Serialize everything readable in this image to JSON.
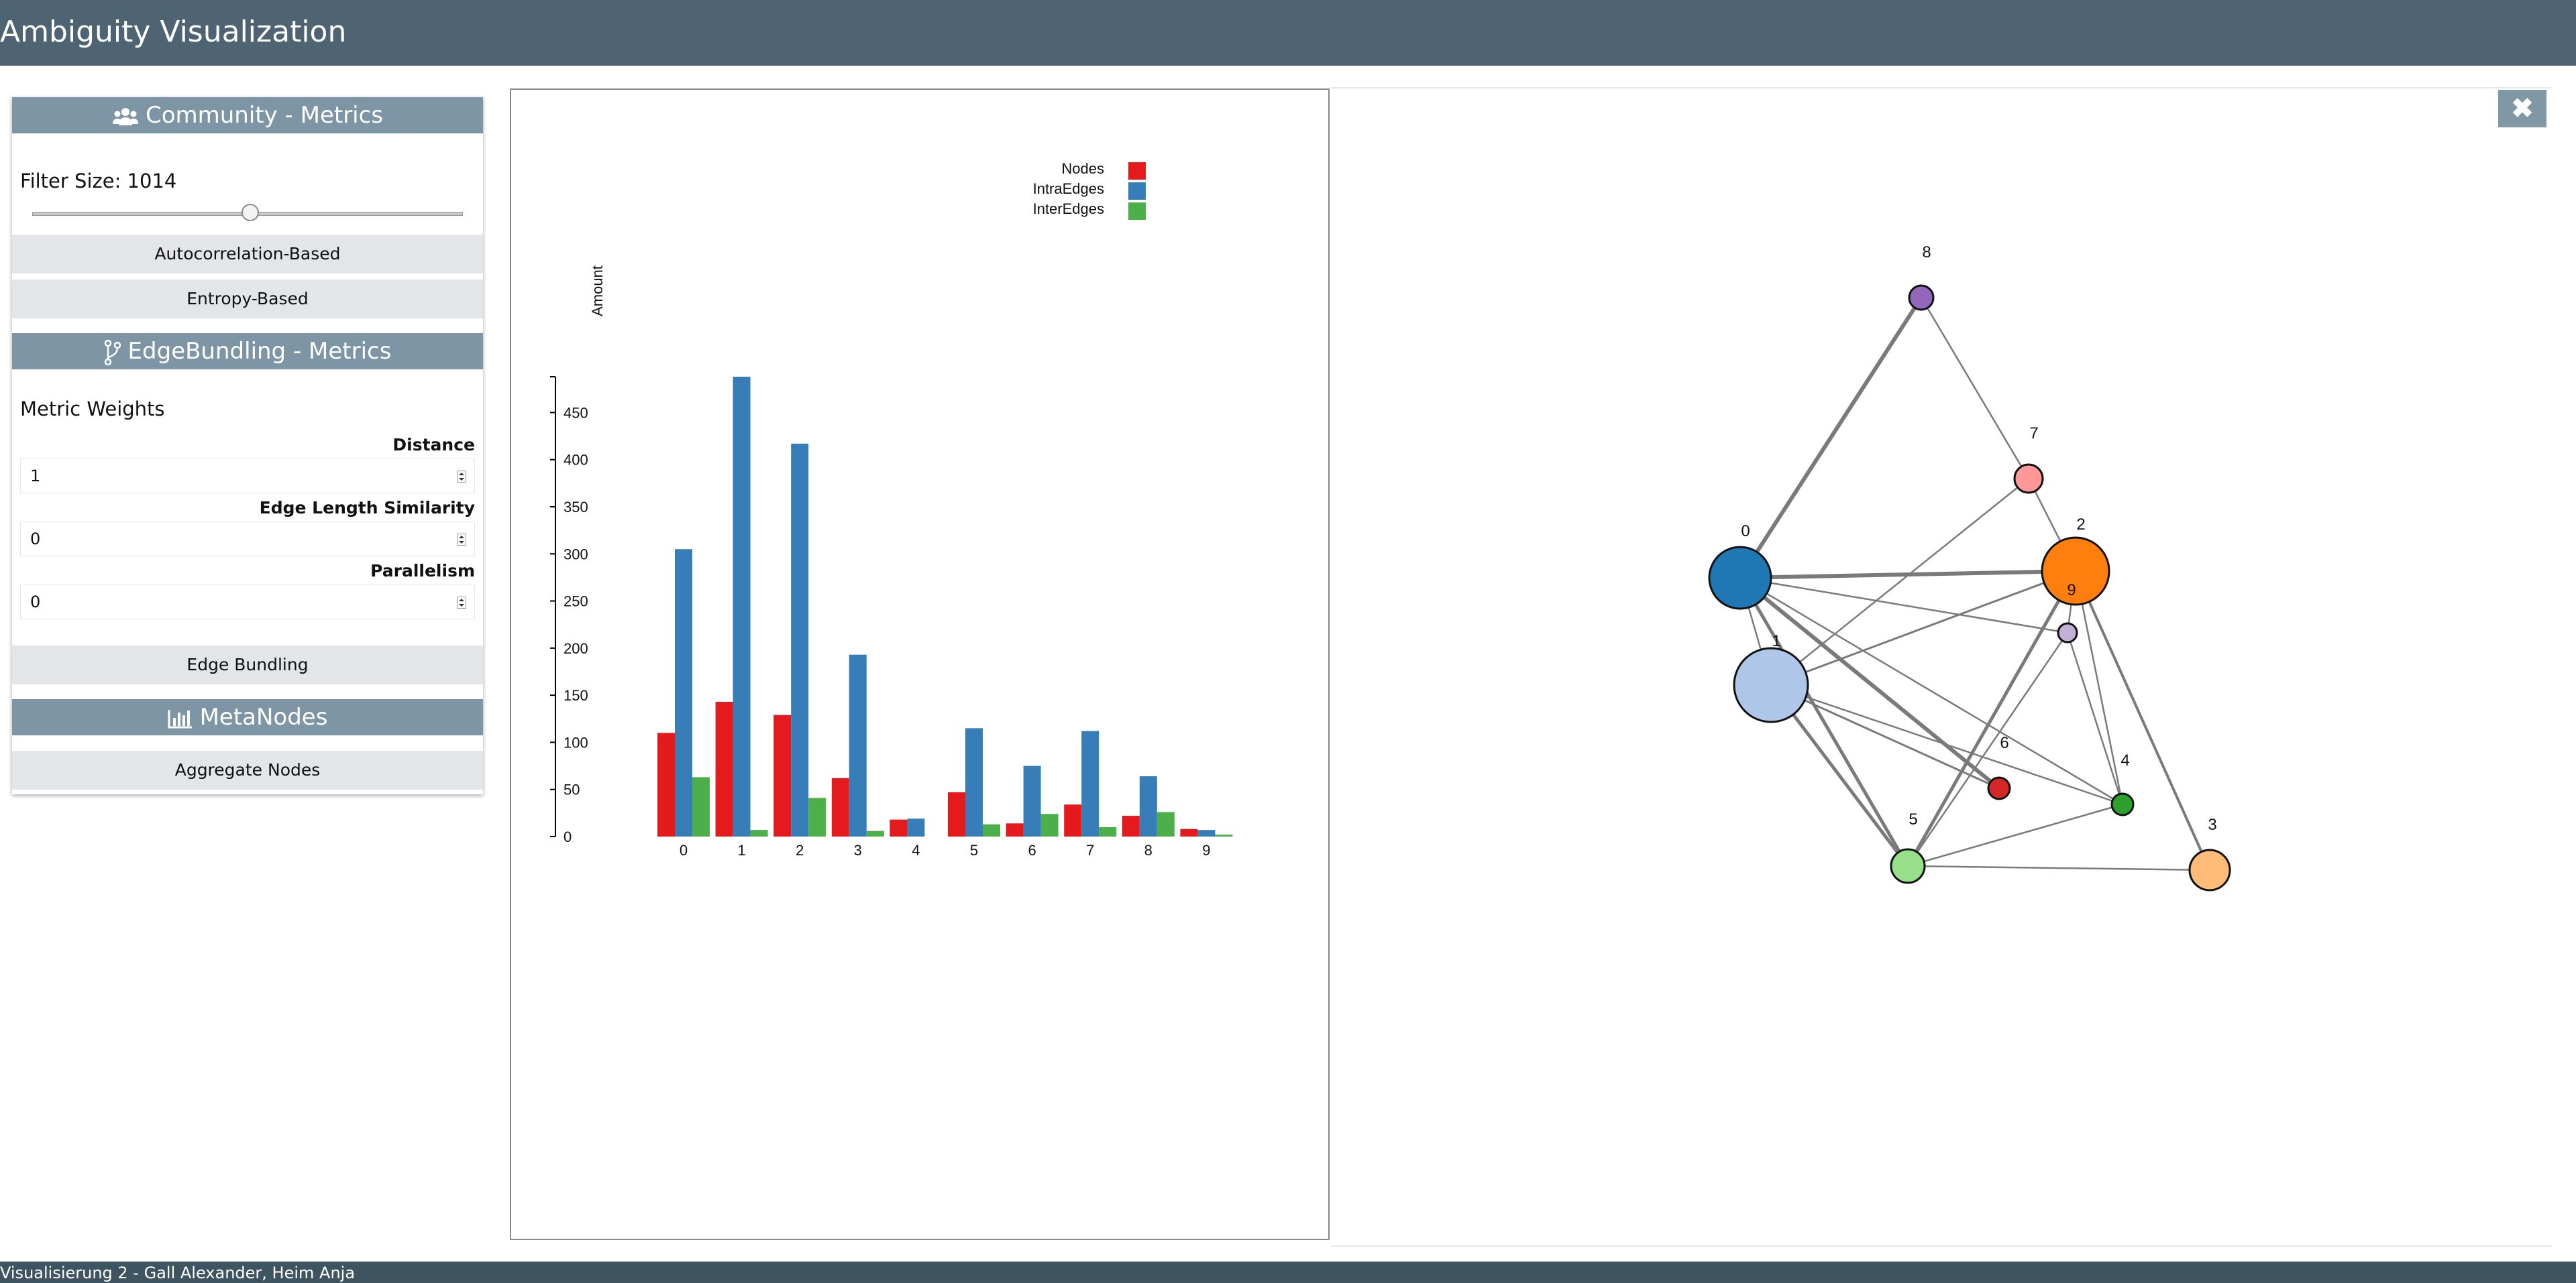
{
  "header": {
    "title": "Ambiguity Visualization"
  },
  "footer": {
    "text": "Visualisierung 2 - Gall Alexander, Heim Anja"
  },
  "sidebar": {
    "community": {
      "title": "Community - Metrics",
      "icon": "users-icon",
      "filter_label": "Filter Size: 1014",
      "filter_slider_fraction": 0.5,
      "buttons": [
        "Autocorrelation-Based",
        "Entropy-Based"
      ]
    },
    "edgebundling": {
      "title": "EdgeBundling - Metrics",
      "icon": "code-branch-icon",
      "weights_title": "Metric Weights",
      "fields": [
        {
          "label": "Distance",
          "value": "1"
        },
        {
          "label": "Edge Length Similarity",
          "value": "0"
        },
        {
          "label": "Parallelism",
          "value": "0"
        }
      ],
      "button": "Edge Bundling"
    },
    "metanodes": {
      "title": "MetaNodes",
      "icon": "bar-chart-icon",
      "button": "Aggregate Nodes"
    }
  },
  "close_button": {
    "icon": "close-icon",
    "symbol": "✖"
  },
  "chart_data": {
    "type": "bar",
    "categories": [
      "0",
      "1",
      "2",
      "3",
      "4",
      "5",
      "6",
      "7",
      "8",
      "9"
    ],
    "series": [
      {
        "name": "Nodes",
        "color": "#e41a1c",
        "values": [
          110,
          143,
          129,
          62,
          18,
          47,
          14,
          34,
          22,
          8
        ]
      },
      {
        "name": "IntraEdges",
        "color": "#377eb8",
        "values": [
          305,
          488,
          417,
          193,
          19,
          115,
          75,
          112,
          64,
          7
        ]
      },
      {
        "name": "InterEdges",
        "color": "#4daf4a",
        "values": [
          63,
          7,
          41,
          6,
          0,
          13,
          24,
          10,
          26,
          2
        ]
      }
    ],
    "ylabel": "Amount",
    "ylim": [
      0,
      488
    ],
    "yticks": [
      0,
      50,
      100,
      150,
      200,
      250,
      300,
      350,
      400,
      450
    ],
    "legend": "top-right"
  },
  "graph": {
    "nodes": [
      {
        "id": "0",
        "color": "#1f77b4",
        "size": "large"
      },
      {
        "id": "1",
        "color": "#aec7e8",
        "size": "largest"
      },
      {
        "id": "2",
        "color": "#ff7f0e",
        "size": "large"
      },
      {
        "id": "3",
        "color": "#ffbb78",
        "size": "medium"
      },
      {
        "id": "4",
        "color": "#2ca02c",
        "size": "small"
      },
      {
        "id": "5",
        "color": "#98df8a",
        "size": "medium"
      },
      {
        "id": "6",
        "color": "#d62728",
        "size": "small"
      },
      {
        "id": "7",
        "color": "#ff9896",
        "size": "small"
      },
      {
        "id": "8",
        "color": "#9467bd",
        "size": "small"
      },
      {
        "id": "9",
        "color": "#c5b0d5",
        "size": "small"
      }
    ],
    "edges": [
      [
        "0",
        "8"
      ],
      [
        "0",
        "2"
      ],
      [
        "0",
        "9"
      ],
      [
        "0",
        "6"
      ],
      [
        "0",
        "5"
      ],
      [
        "0",
        "4"
      ],
      [
        "0",
        "1"
      ],
      [
        "8",
        "7"
      ],
      [
        "7",
        "2"
      ],
      [
        "7",
        "1"
      ],
      [
        "2",
        "1"
      ],
      [
        "2",
        "5"
      ],
      [
        "2",
        "4"
      ],
      [
        "2",
        "3"
      ],
      [
        "2",
        "9"
      ],
      [
        "1",
        "5"
      ],
      [
        "1",
        "4"
      ],
      [
        "9",
        "5"
      ],
      [
        "9",
        "4"
      ],
      [
        "5",
        "3"
      ],
      [
        "5",
        "4"
      ],
      [
        "1",
        "6"
      ]
    ]
  }
}
